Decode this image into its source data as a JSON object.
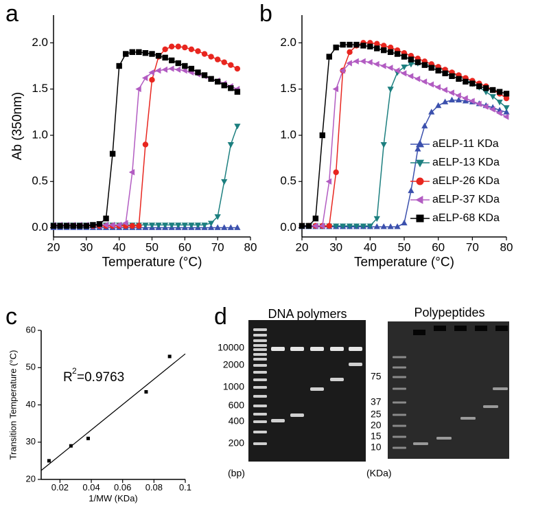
{
  "chart_data": [
    {
      "type": "line",
      "panel_label": "a",
      "xlabel": "Temperature (°C)",
      "ylabel": "Ab (350nm)",
      "xlim": [
        20,
        80
      ],
      "xticks": [
        20,
        30,
        40,
        50,
        60,
        70,
        80
      ],
      "ylim": [
        -0.1,
        2.3
      ],
      "yticks": [
        {
          "value": 0,
          "label": "0.0"
        },
        0.5,
        {
          "value": 1,
          "label": "1.0"
        },
        1.5,
        {
          "value": 2,
          "label": "2.0"
        }
      ],
      "x": [
        20,
        22,
        24,
        26,
        28,
        30,
        32,
        34,
        36,
        38,
        40,
        42,
        44,
        46,
        48,
        50,
        52,
        54,
        56,
        58,
        60,
        62,
        64,
        66,
        68,
        70,
        72,
        74,
        76
      ],
      "series": [
        {
          "name": "aELP-11 KDa",
          "color": "#3b50ad",
          "marker": "triangle-up",
          "values": [
            0,
            0,
            0,
            0,
            0,
            0,
            0,
            0,
            0,
            0,
            0,
            0,
            0,
            0,
            0,
            0,
            0,
            0,
            0,
            0,
            0,
            0,
            0,
            0,
            0,
            0,
            0,
            0,
            0
          ]
        },
        {
          "name": "aELP-13 KDa",
          "color": "#1c7f7f",
          "marker": "triangle-down",
          "values": [
            0.03,
            0.03,
            0.03,
            0.03,
            0.03,
            0.03,
            0.03,
            0.03,
            0.03,
            0.03,
            0.03,
            0.03,
            0.03,
            0.03,
            0.03,
            0.03,
            0.03,
            0.03,
            0.03,
            0.03,
            0.03,
            0.03,
            0.03,
            0.03,
            0.05,
            0.12,
            0.5,
            0.9,
            1.1
          ]
        },
        {
          "name": "aELP-26 KDa",
          "color": "#e8261f",
          "marker": "circle",
          "values": [
            0.02,
            0.02,
            0.02,
            0.02,
            0.02,
            0.02,
            0.02,
            0.02,
            0.02,
            0.02,
            0.02,
            0.02,
            0.02,
            0.02,
            0.9,
            1.6,
            1.85,
            1.93,
            1.96,
            1.96,
            1.95,
            1.93,
            1.91,
            1.88,
            1.85,
            1.82,
            1.79,
            1.76,
            1.72
          ]
        },
        {
          "name": "aELP-37 KDa",
          "color": "#b25cc2",
          "marker": "triangle-left",
          "values": [
            0.03,
            0.03,
            0.03,
            0.03,
            0.03,
            0.03,
            0.03,
            0.03,
            0.03,
            0.03,
            0.03,
            0.05,
            0.6,
            1.5,
            1.62,
            1.68,
            1.7,
            1.71,
            1.72,
            1.71,
            1.7,
            1.68,
            1.66,
            1.64,
            1.61,
            1.59,
            1.56,
            1.53,
            1.5
          ]
        },
        {
          "name": "aELP-68 KDa",
          "color": "#000000",
          "marker": "square",
          "values": [
            0.02,
            0.02,
            0.02,
            0.02,
            0.02,
            0.02,
            0.03,
            0.04,
            0.1,
            0.8,
            1.75,
            1.88,
            1.9,
            1.9,
            1.89,
            1.88,
            1.86,
            1.84,
            1.81,
            1.78,
            1.75,
            1.72,
            1.68,
            1.65,
            1.61,
            1.58,
            1.54,
            1.51,
            1.47
          ]
        }
      ]
    },
    {
      "type": "line",
      "panel_label": "b",
      "xlabel": "Temperature (°C)",
      "legend": "lower right",
      "xlim": [
        20,
        80
      ],
      "xticks": [
        20,
        30,
        40,
        50,
        60,
        70,
        80
      ],
      "ylim": [
        -0.1,
        2.3
      ],
      "yticks": [
        {
          "value": 0,
          "label": "0.0"
        },
        0.5,
        {
          "value": 1,
          "label": "1.0"
        },
        1.5,
        {
          "value": 2,
          "label": "2.0"
        }
      ],
      "x": [
        20,
        22,
        24,
        26,
        28,
        30,
        32,
        34,
        36,
        38,
        40,
        42,
        44,
        46,
        48,
        50,
        52,
        54,
        56,
        58,
        60,
        62,
        64,
        66,
        68,
        70,
        72,
        74,
        76,
        78,
        80
      ],
      "series": [
        {
          "name": "aELP-11 KDa",
          "color": "#3b50ad",
          "marker": "triangle-up",
          "values": [
            0.01,
            0.01,
            0.01,
            0.01,
            0.01,
            0.01,
            0.01,
            0.01,
            0.01,
            0.01,
            0.01,
            0.01,
            0.01,
            0.01,
            0.01,
            0.05,
            0.4,
            0.85,
            1.1,
            1.25,
            1.32,
            1.36,
            1.38,
            1.38,
            1.37,
            1.36,
            1.34,
            1.32,
            1.3,
            1.27,
            1.25
          ]
        },
        {
          "name": "aELP-13 KDa",
          "color": "#1c7f7f",
          "marker": "triangle-down",
          "values": [
            0.02,
            0.02,
            0.02,
            0.02,
            0.02,
            0.02,
            0.02,
            0.02,
            0.02,
            0.02,
            0.02,
            0.1,
            0.9,
            1.5,
            1.68,
            1.74,
            1.77,
            1.78,
            1.77,
            1.75,
            1.73,
            1.7,
            1.67,
            1.64,
            1.6,
            1.56,
            1.52,
            1.47,
            1.42,
            1.36,
            1.3
          ]
        },
        {
          "name": "aELP-26 KDa",
          "color": "#e8261f",
          "marker": "circle",
          "values": [
            0.02,
            0.02,
            0.02,
            0.02,
            0.02,
            0.6,
            1.7,
            1.9,
            1.97,
            2.0,
            2.0,
            1.99,
            1.97,
            1.95,
            1.92,
            1.89,
            1.86,
            1.83,
            1.8,
            1.77,
            1.74,
            1.71,
            1.68,
            1.65,
            1.62,
            1.59,
            1.56,
            1.53,
            1.49,
            1.45,
            1.4
          ]
        },
        {
          "name": "aELP-37 KDa",
          "color": "#b25cc2",
          "marker": "triangle-left",
          "values": [
            0.02,
            0.02,
            0.02,
            0.02,
            0.5,
            1.5,
            1.7,
            1.78,
            1.8,
            1.8,
            1.79,
            1.77,
            1.75,
            1.73,
            1.7,
            1.67,
            1.64,
            1.61,
            1.58,
            1.55,
            1.52,
            1.49,
            1.46,
            1.43,
            1.4,
            1.37,
            1.34,
            1.31,
            1.28,
            1.24,
            1.2
          ]
        },
        {
          "name": "aELP-68 KDa",
          "color": "#000000",
          "marker": "square",
          "values": [
            0.02,
            0.02,
            0.1,
            1.0,
            1.85,
            1.95,
            1.98,
            1.98,
            1.98,
            1.97,
            1.96,
            1.94,
            1.92,
            1.9,
            1.88,
            1.85,
            1.82,
            1.79,
            1.76,
            1.73,
            1.7,
            1.67,
            1.64,
            1.61,
            1.58,
            1.56,
            1.53,
            1.51,
            1.49,
            1.47,
            1.45
          ]
        }
      ]
    },
    {
      "type": "scatter",
      "panel_label": "c",
      "xlabel": "1/MW (KDa)",
      "ylabel": "Transition Temperature (°C)",
      "xlim": [
        0.008,
        0.1
      ],
      "xticks": [
        0.02,
        0.04,
        0.06,
        0.08,
        0.1
      ],
      "ylim": [
        20,
        60
      ],
      "yticks": [
        20,
        30,
        40,
        50,
        60
      ],
      "x": [
        0.013,
        0.027,
        0.038,
        0.075,
        0.09
      ],
      "y": [
        25,
        29,
        31,
        43.5,
        53
      ],
      "color": "#000000",
      "fit_line": {
        "x": [
          0.008,
          0.1
        ],
        "y": [
          22.4,
          53.7
        ]
      },
      "annotation": {
        "base": "R",
        "sup": "2",
        "rest": "=0.9763"
      }
    }
  ],
  "gel": {
    "panel_label": "d",
    "left": {
      "title": "DNA polymers",
      "labels": [
        "10000",
        "2000",
        "1000",
        "600",
        "400",
        "200"
      ],
      "unit": "(bp)"
    },
    "right": {
      "title": "Polypeptides",
      "labels": [
        "75",
        "37",
        "25",
        "20",
        "15",
        "10"
      ],
      "unit": "(KDa)"
    }
  }
}
